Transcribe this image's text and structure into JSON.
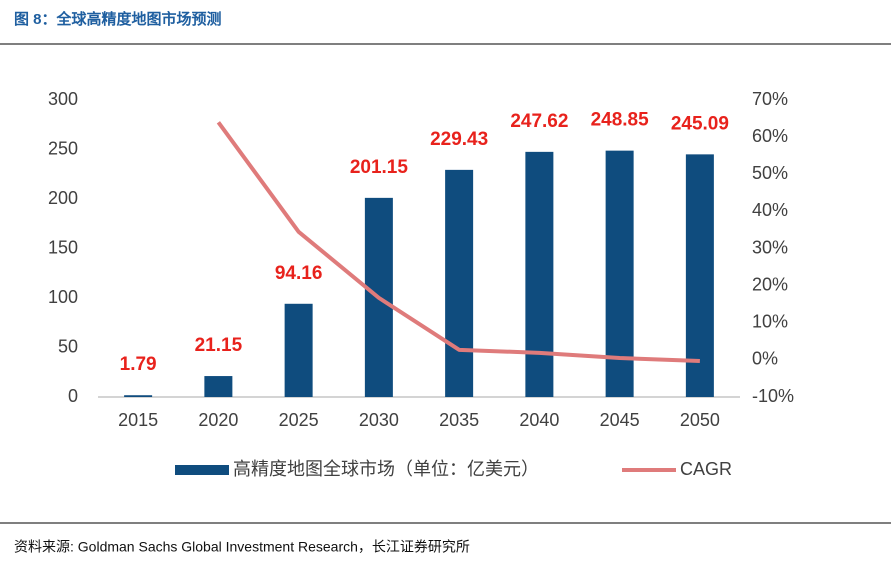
{
  "header": {
    "title": "图 8：全球高精度地图市场预测"
  },
  "chart_data": {
    "type": "bar",
    "categories": [
      "2015",
      "2020",
      "2025",
      "2030",
      "2035",
      "2040",
      "2045",
      "2050"
    ],
    "series": [
      {
        "name": "高精度地图全球市场（单位：亿美元）",
        "type": "bar",
        "color": "#0f4c7e",
        "values": [
          1.79,
          21.15,
          94.16,
          201.15,
          229.43,
          247.62,
          248.85,
          245.09
        ]
      },
      {
        "name": "CAGR",
        "type": "line",
        "axis": "y2",
        "color": "#df7b7b",
        "values": [
          null,
          64,
          34.5,
          16.7,
          2.7,
          1.9,
          0.5,
          -0.3
        ]
      }
    ],
    "value_label_color": "#e8221c",
    "ylim": [
      0,
      300
    ],
    "yticks": [
      0,
      50,
      100,
      150,
      200,
      250,
      300
    ],
    "y2lim": [
      -10,
      70
    ],
    "y2ticks": [
      {
        "value": -10,
        "label": "-10%"
      },
      {
        "value": 0,
        "label": "0%"
      },
      {
        "value": 10,
        "label": "10%"
      },
      {
        "value": 20,
        "label": "20%"
      },
      {
        "value": 30,
        "label": "30%"
      },
      {
        "value": 40,
        "label": "40%"
      },
      {
        "value": 50,
        "label": "50%"
      },
      {
        "value": 60,
        "label": "60%"
      },
      {
        "value": 70,
        "label": "70%"
      }
    ],
    "grid": false,
    "legend": "bottom"
  },
  "footer": {
    "source": "资料来源: Goldman Sachs Global Investment Research，长江证券研究所"
  }
}
